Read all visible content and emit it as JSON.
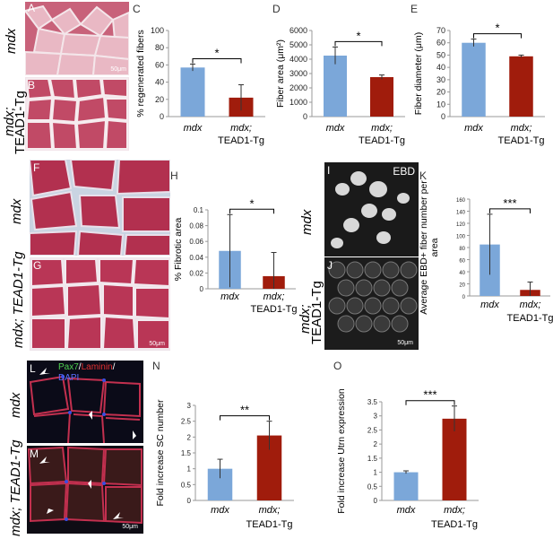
{
  "panel_letters": {
    "a": "A",
    "b": "B",
    "c": "C",
    "d": "D",
    "e": "E",
    "f": "F",
    "g": "G",
    "h": "H",
    "i": "I",
    "j": "J",
    "k": "K",
    "l": "L",
    "m": "M",
    "n": "N",
    "o": "O"
  },
  "row_labels": {
    "mdx": "mdx",
    "mdx_tead": "mdx;",
    "tead_tg": "TEAD1-Tg",
    "mdx_tead_inline": "mdx; TEAD1-Tg"
  },
  "image_text": {
    "scale": "50",
    "unit": "μm",
    "ebd": "EBD",
    "pax7": "Pax7",
    "laminin": "Laminin",
    "slash": "/",
    "dapi": "DAPI"
  },
  "colors": {
    "blue_bar": "#7ba7d9",
    "red_bar": "#a01c0c",
    "he_pink": "#c8627a",
    "masson_red": "#b2304f",
    "fluor_bg": "#0b0b18"
  },
  "chart_data": [
    {
      "id": "C",
      "type": "bar",
      "categories": [
        "mdx",
        "mdx; TEAD1-Tg"
      ],
      "values": [
        57,
        22
      ],
      "errors": [
        4,
        15
      ],
      "ylabel": "% regenerated fibers",
      "ylim": [
        0,
        100
      ],
      "yticks": [
        0,
        20,
        40,
        60,
        80,
        100
      ],
      "significance": "*"
    },
    {
      "id": "D",
      "type": "bar",
      "categories": [
        "mdx",
        "mdx; TEAD1-Tg"
      ],
      "values": [
        4250,
        2750
      ],
      "errors": [
        600,
        150
      ],
      "ylabel": "Fiber area (μm²)",
      "ylim": [
        0,
        6000
      ],
      "yticks": [
        0,
        1000,
        2000,
        3000,
        4000,
        5000,
        6000
      ],
      "significance": "*"
    },
    {
      "id": "E",
      "type": "bar",
      "categories": [
        "mdx",
        "mdx; TEAD1-Tg"
      ],
      "values": [
        60,
        49
      ],
      "errors": [
        3,
        1
      ],
      "ylabel": "Fiber diameter (μm)",
      "ylim": [
        0,
        70
      ],
      "yticks": [
        0,
        10,
        20,
        30,
        40,
        50,
        60,
        70
      ],
      "significance": "*"
    },
    {
      "id": "H",
      "type": "bar",
      "categories": [
        "mdx",
        "mdx; TEAD1-Tg"
      ],
      "values": [
        0.048,
        0.016
      ],
      "errors": [
        0.046,
        0.03
      ],
      "ylabel": "% Fibrotic area",
      "ylim": [
        0,
        0.1
      ],
      "yticks": [
        0,
        0.02,
        0.04,
        0.06,
        0.08,
        0.1
      ],
      "significance": "*"
    },
    {
      "id": "K",
      "type": "bar",
      "categories": [
        "mdx",
        "mdx; TEAD1-Tg"
      ],
      "values": [
        85,
        10
      ],
      "errors": [
        50,
        13
      ],
      "ylabel": "Average EBD+ fiber number per area",
      "ylim": [
        0,
        160
      ],
      "yticks": [
        0,
        20,
        40,
        60,
        80,
        100,
        120,
        140,
        160
      ],
      "significance": "***"
    },
    {
      "id": "N",
      "type": "bar",
      "categories": [
        "mdx",
        "mdx; TEAD1-Tg"
      ],
      "values": [
        1.0,
        2.05
      ],
      "errors": [
        0.3,
        0.45
      ],
      "ylabel": "Fold increase SC number",
      "ylim": [
        0,
        3
      ],
      "yticks": [
        0,
        0.5,
        1,
        1.5,
        2,
        2.5,
        3
      ],
      "significance": "**"
    },
    {
      "id": "O",
      "type": "bar",
      "categories": [
        "mdx",
        "mdx; TEAD1-Tg"
      ],
      "values": [
        1.0,
        2.9
      ],
      "errors": [
        0.05,
        0.45
      ],
      "ylabel": "Fold increase Utrn expression",
      "ylim": [
        0,
        3.5
      ],
      "yticks": [
        0,
        0.5,
        1,
        1.5,
        2,
        2.5,
        3,
        3.5
      ],
      "significance": "***"
    }
  ]
}
